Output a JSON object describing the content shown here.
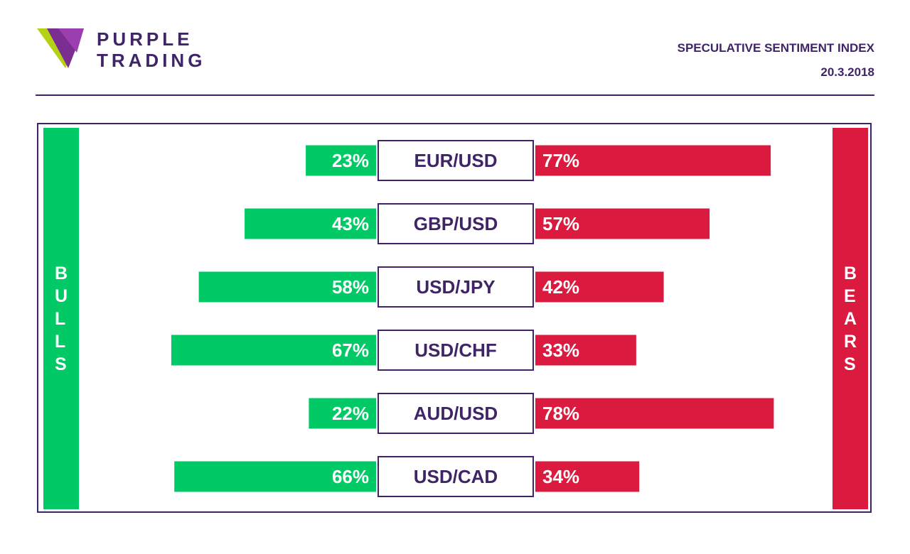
{
  "header": {
    "brand_line1": "PURPLE",
    "brand_line2": "TRADING",
    "title": "SPECULATIVE SENTIMENT INDEX",
    "date": "20.3.2018"
  },
  "colors": {
    "bulls": "#00c966",
    "bears": "#da1a3f",
    "accent": "#3f2568"
  },
  "chart_data": {
    "type": "bar",
    "title": "SPECULATIVE SENTIMENT INDEX",
    "categories": [
      "EUR/USD",
      "GBP/USD",
      "USD/JPY",
      "USD/CHF",
      "AUD/USD",
      "USD/CAD"
    ],
    "series": [
      {
        "name": "BULLS",
        "values": [
          23,
          43,
          58,
          67,
          22,
          66
        ]
      },
      {
        "name": "BEARS",
        "values": [
          77,
          57,
          42,
          33,
          78,
          34
        ]
      }
    ],
    "unit": "%",
    "xlim": [
      0,
      100
    ]
  }
}
